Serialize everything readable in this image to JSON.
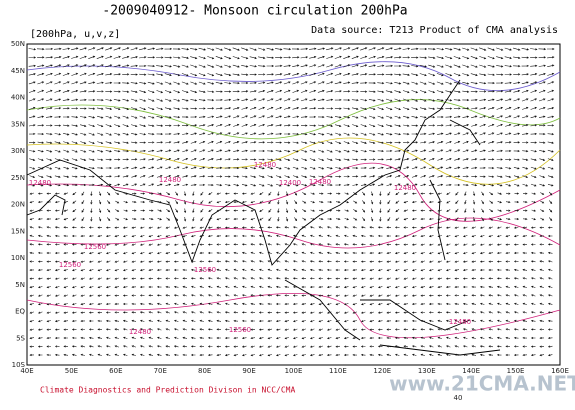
{
  "header": {
    "title": "-2009040912- Monsoon circulation 200hPa",
    "level": "[200hPa, u,v,z]",
    "source": "Data source: T213 Product of CMA analysis"
  },
  "map": {
    "lat_labels": [
      "50N",
      "45N",
      "40N",
      "35N",
      "30N",
      "25N",
      "20N",
      "15N",
      "10N",
      "5N",
      "EQ",
      "5S",
      "10S"
    ],
    "lon_labels": [
      "40E",
      "50E",
      "60E",
      "70E",
      "80E",
      "90E",
      "100E",
      "110E",
      "120E",
      "130E",
      "140E",
      "150E",
      "160E"
    ],
    "contour_labels": [
      "12480",
      "12480",
      "12480",
      "12400",
      "12480",
      "12480",
      "12560",
      "12560",
      "12560",
      "12480",
      "12560",
      "12480"
    ]
  },
  "footer": {
    "credit": "Climate Diagnostics and Prediction Divison in NCC/CMA",
    "watermark": "www.21CMA.NET",
    "page": "40"
  }
}
